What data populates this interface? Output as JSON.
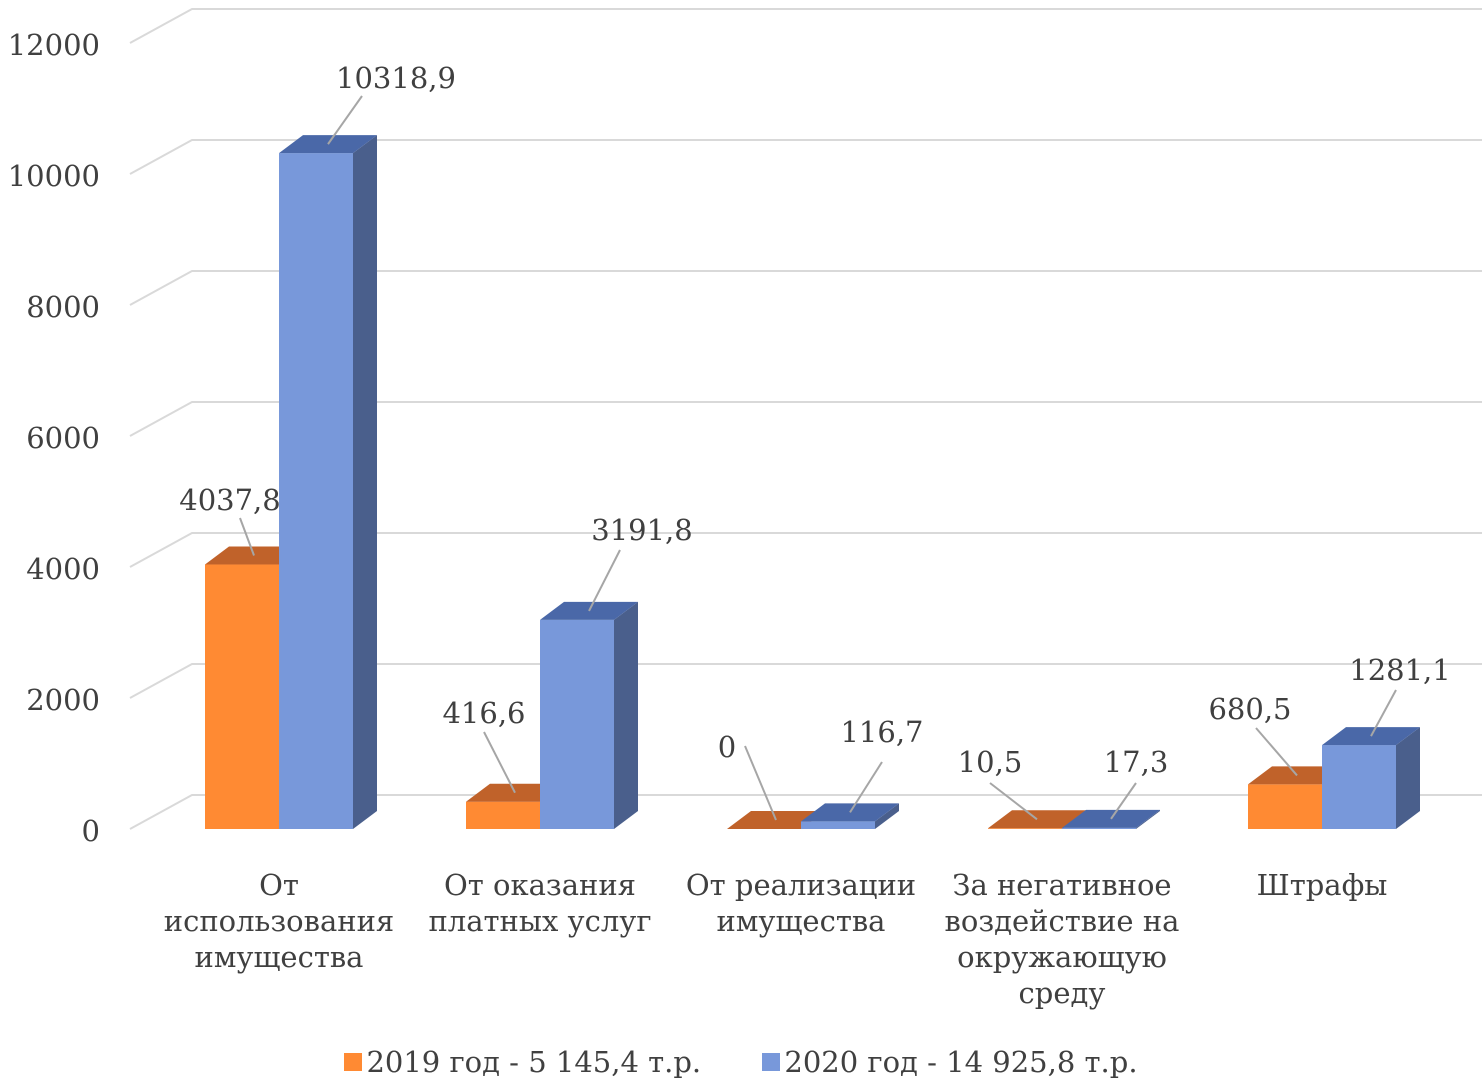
{
  "chart_data": {
    "type": "bar",
    "style": "3d-clustered-column",
    "categories": [
      [
        "От",
        "использования",
        "имущества"
      ],
      [
        "От оказания",
        "платных услуг"
      ],
      [
        "От реализации",
        "имущества"
      ],
      [
        "За негативное",
        "воздействие на",
        "окружающую",
        "среду"
      ],
      [
        "Штрафы"
      ]
    ],
    "series": [
      {
        "name": "2019 год - 5 145,4 т.р.",
        "values": [
          4037.8,
          416.6,
          0,
          10.5,
          680.5
        ],
        "labels": [
          "4037,8",
          "416,6",
          "0",
          "10,5",
          "680,5"
        ],
        "color": "#ff8a33",
        "top_color": "#c0622a"
      },
      {
        "name": "2020 год - 14 925,8  т.р.",
        "values": [
          10318.9,
          3191.8,
          116.7,
          17.3,
          1281.1
        ],
        "labels": [
          "10318,9",
          "3191,8",
          "116,7",
          "17,3",
          "1281,1"
        ],
        "color": "#7898da",
        "top_color": "#4a68a8",
        "side_color": "#4a5f8c"
      }
    ],
    "yticks": [
      "0",
      "2000",
      "4000",
      "6000",
      "8000",
      "10000",
      "12000"
    ],
    "ylim": [
      0,
      12000
    ],
    "grid": true,
    "legend": "bottom"
  }
}
